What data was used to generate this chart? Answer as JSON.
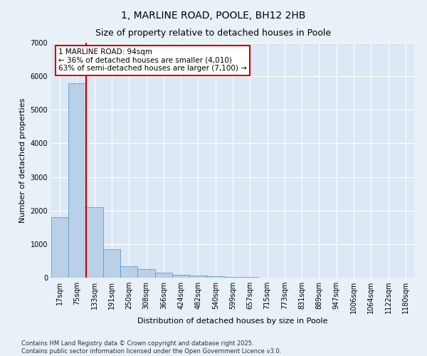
{
  "title_line1": "1, MARLINE ROAD, POOLE, BH12 2HB",
  "title_line2": "Size of property relative to detached houses in Poole",
  "xlabel": "Distribution of detached houses by size in Poole",
  "ylabel": "Number of detached properties",
  "categories": [
    "17sqm",
    "75sqm",
    "133sqm",
    "191sqm",
    "250sqm",
    "308sqm",
    "366sqm",
    "424sqm",
    "482sqm",
    "540sqm",
    "599sqm",
    "657sqm",
    "715sqm",
    "773sqm",
    "831sqm",
    "889sqm",
    "947sqm",
    "1006sqm",
    "1064sqm",
    "1122sqm",
    "1180sqm"
  ],
  "values": [
    1800,
    5800,
    2100,
    850,
    350,
    250,
    150,
    90,
    65,
    50,
    25,
    15,
    8,
    4,
    3,
    2,
    1,
    1,
    0,
    0,
    0
  ],
  "bar_color": "#b8d0e8",
  "bar_edge_color": "#6699cc",
  "reference_line_x": 1.5,
  "reference_line_color": "#cc0000",
  "annotation_text": "1 MARLINE ROAD: 94sqm\n← 36% of detached houses are smaller (4,010)\n63% of semi-detached houses are larger (7,100) →",
  "annotation_box_facecolor": "#ffffff",
  "annotation_box_edgecolor": "#cc0000",
  "ylim": [
    0,
    7000
  ],
  "yticks": [
    0,
    1000,
    2000,
    3000,
    4000,
    5000,
    6000,
    7000
  ],
  "fig_bg_color": "#e8f0f8",
  "ax_bg_color": "#dce8f5",
  "footer_text": "Contains HM Land Registry data © Crown copyright and database right 2025.\nContains public sector information licensed under the Open Government Licence v3.0.",
  "title_fontsize": 10,
  "subtitle_fontsize": 9,
  "axis_label_fontsize": 8,
  "tick_fontsize": 7,
  "annotation_fontsize": 7.5,
  "footer_fontsize": 6
}
